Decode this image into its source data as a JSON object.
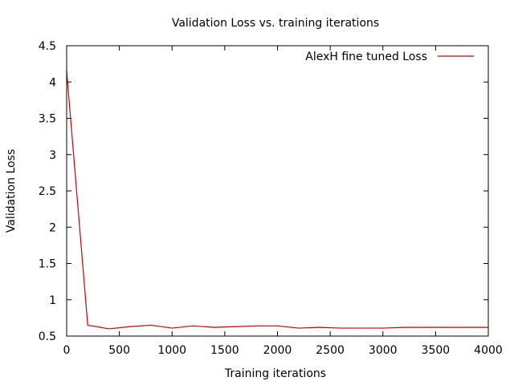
{
  "chart_data": {
    "type": "line",
    "title": "Validation Loss  vs. training iterations",
    "xlabel": "Training iterations",
    "ylabel": "Validation Loss",
    "xlim": [
      0,
      4000
    ],
    "ylim": [
      0.5,
      4.5
    ],
    "xticks": [
      0,
      500,
      1000,
      1500,
      2000,
      2500,
      3000,
      3500,
      4000
    ],
    "yticks": [
      0.5,
      1,
      1.5,
      2,
      2.5,
      3,
      3.5,
      4,
      4.5
    ],
    "xtick_labels": [
      "0",
      "500",
      "1000",
      "1500",
      "2000",
      "2500",
      "3000",
      "3500",
      "4000"
    ],
    "ytick_labels": [
      "0.5",
      "1",
      "1.5",
      "2",
      "2.5",
      "3",
      "3.5",
      "4",
      "4.5"
    ],
    "grid": false,
    "legend_position": "top-right",
    "series": [
      {
        "name": "AlexH fine tuned Loss",
        "color": "#cc0000",
        "x": [
          0,
          200,
          400,
          600,
          800,
          1000,
          1200,
          1400,
          1600,
          1800,
          2000,
          2200,
          2400,
          2600,
          2800,
          3000,
          3200,
          3400,
          3600,
          3800,
          4000
        ],
        "y": [
          4.15,
          0.65,
          0.6,
          0.63,
          0.65,
          0.61,
          0.64,
          0.62,
          0.63,
          0.64,
          0.64,
          0.61,
          0.62,
          0.61,
          0.61,
          0.61,
          0.62,
          0.62,
          0.62,
          0.62,
          0.62
        ]
      }
    ]
  }
}
